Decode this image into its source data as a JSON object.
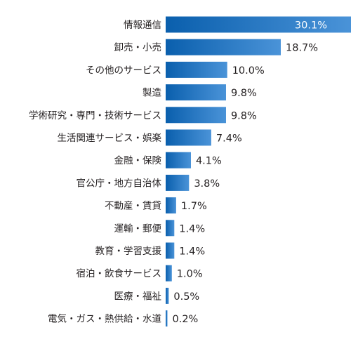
{
  "chart_data": {
    "type": "bar",
    "orientation": "horizontal",
    "categories": [
      "情報通信",
      "卸売・小売",
      "その他のサービス",
      "製造",
      "学術研究・専門・技術サービス",
      "生活関連サービス・娯楽",
      "金融・保険",
      "官公庁・地方自治体",
      "不動産・賃貸",
      "運輸・郵便",
      "教育・学習支援",
      "宿泊・飲食サービス",
      "医療・福祉",
      "電気・ガス・熱供給・水道"
    ],
    "display_categories": [
      "情報通信",
      "卸売・小売",
      "その他のサービス",
      "製造",
      "学術研究・専門・技術サービス",
      "生活関連サービス・娯楽",
      "金融・保険",
      "官公庁・地方自治体",
      "不動産・賃貸",
      "運輸・郵便",
      "教育・学習支援",
      "宿泊・飲食サービス",
      "医療・福祉",
      "電気・ガス・熱供給・水道"
    ],
    "values": [
      30.1,
      18.7,
      10.0,
      9.8,
      9.8,
      7.4,
      4.1,
      3.8,
      1.7,
      1.4,
      1.4,
      1.0,
      0.5,
      0.2
    ],
    "value_labels": [
      "30.1%",
      "18.7%",
      "10.0%",
      "9.8%",
      "9.8%",
      "7.4%",
      "4.1%",
      "3.8%",
      "1.7%",
      "1.4%",
      "1.4%",
      "1.0%",
      "0.5%",
      "0.2%"
    ],
    "unit": "%",
    "xlim": [
      0,
      30.1
    ],
    "grid": false,
    "legend": "none",
    "colors": {
      "bar_left": "#0a5fad",
      "bar_right": "#4a93d8",
      "label_text": "#231f20",
      "inside_label_text": "#ffffff"
    }
  }
}
